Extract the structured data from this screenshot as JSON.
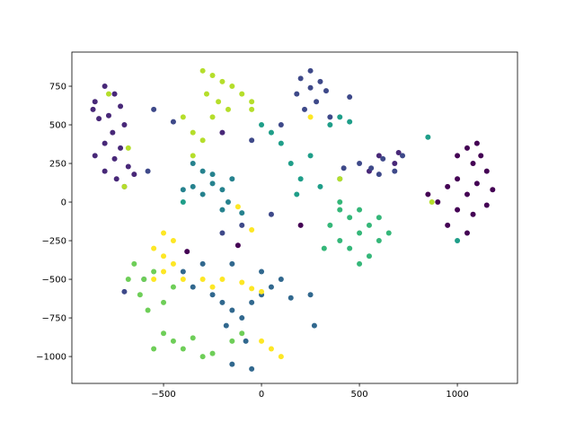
{
  "chart_data": {
    "type": "scatter",
    "xlim": [
      -968,
      1307
    ],
    "ylim": [
      -1174,
      971
    ],
    "xticks": [
      {
        "value": -500,
        "label": "−500"
      },
      0,
      500,
      1000
    ],
    "yticks": [
      {
        "value": -1000,
        "label": "−1000"
      },
      {
        "value": -750,
        "label": "−750"
      },
      {
        "value": -500,
        "label": "−500"
      },
      {
        "value": -250,
        "label": "−250"
      },
      0,
      250,
      500,
      750
    ],
    "grid": false,
    "series": [
      {
        "color": "#440154",
        "x": [
          1050,
          1100,
          1000,
          1120,
          1080,
          1150,
          1000,
          950,
          1100,
          1180,
          1050,
          900,
          1000,
          1080,
          950,
          1050,
          850,
          1150,
          -120,
          -380,
          200
        ],
        "y": [
          350,
          380,
          300,
          300,
          250,
          200,
          150,
          100,
          120,
          80,
          50,
          0,
          -50,
          -80,
          -150,
          -200,
          50,
          -20,
          -280,
          -320,
          -150
        ]
      },
      {
        "color": "#482878",
        "x": [
          -800,
          -750,
          -850,
          -720,
          -780,
          -830,
          -700,
          -760,
          -800,
          -720,
          -850,
          -750,
          -680,
          -800,
          -740,
          -700,
          -650,
          -860,
          600,
          680,
          550,
          700,
          -200
        ],
        "y": [
          750,
          700,
          650,
          620,
          560,
          540,
          500,
          450,
          380,
          350,
          300,
          280,
          230,
          200,
          150,
          100,
          180,
          600,
          300,
          250,
          200,
          320,
          450
        ]
      },
      {
        "color": "#3e4989",
        "x": [
          250,
          200,
          300,
          250,
          330,
          180,
          280,
          220,
          350,
          450,
          500,
          560,
          620,
          680,
          720,
          600,
          420,
          -450,
          -550,
          -200,
          -100,
          50,
          -50,
          100,
          -580,
          -700
        ],
        "y": [
          850,
          800,
          780,
          740,
          720,
          700,
          650,
          600,
          550,
          680,
          250,
          220,
          280,
          200,
          300,
          180,
          220,
          520,
          600,
          -200,
          -150,
          -80,
          400,
          500,
          200,
          -580
        ]
      },
      {
        "color": "#31688e",
        "x": [
          -200,
          -150,
          -100,
          -250,
          -50,
          0,
          -180,
          -80,
          -150,
          -50,
          50,
          100,
          -350,
          -400,
          -300,
          -150,
          0,
          150,
          250,
          270,
          -600
        ],
        "y": [
          -650,
          -700,
          -750,
          -600,
          -650,
          -600,
          -800,
          -900,
          -1050,
          -1080,
          -550,
          -500,
          -550,
          -450,
          -400,
          -400,
          -450,
          -620,
          -600,
          -800,
          -500
        ]
      },
      {
        "color": "#26828e",
        "x": [
          -400,
          -350,
          -300,
          -250,
          -200,
          -150,
          -300,
          -350,
          -250,
          -170,
          -200,
          -100
        ],
        "y": [
          80,
          100,
          50,
          120,
          80,
          150,
          200,
          250,
          180,
          0,
          -50,
          -70
        ]
      },
      {
        "color": "#1f9e89",
        "x": [
          0,
          50,
          100,
          150,
          200,
          250,
          350,
          400,
          450,
          300,
          180,
          1000,
          850,
          -400,
          400
        ],
        "y": [
          500,
          450,
          380,
          250,
          150,
          300,
          500,
          550,
          520,
          100,
          50,
          -250,
          420,
          0,
          150
        ]
      },
      {
        "color": "#35b779",
        "x": [
          400,
          450,
          500,
          550,
          600,
          450,
          500,
          400,
          350,
          600,
          650,
          550,
          400,
          320,
          500
        ],
        "y": [
          -50,
          -100,
          -200,
          -150,
          -250,
          -300,
          -400,
          -250,
          -150,
          -100,
          -200,
          -350,
          0,
          -300,
          -50
        ]
      },
      {
        "color": "#6ece58",
        "x": [
          -600,
          -620,
          -580,
          -500,
          -450,
          -550,
          -500,
          -450,
          -550,
          -400,
          -300,
          -350,
          -250,
          -150,
          -100,
          -680,
          -650
        ],
        "y": [
          -500,
          -600,
          -700,
          -650,
          -550,
          -450,
          -850,
          -900,
          -950,
          -950,
          -1000,
          -880,
          -980,
          -900,
          -850,
          -500,
          -400
        ]
      },
      {
        "color": "#b5de2b",
        "x": [
          -300,
          -250,
          -200,
          -150,
          -280,
          -220,
          -100,
          -50,
          -170,
          -250,
          -400,
          -350,
          -300,
          -350,
          -50,
          -780,
          -680,
          -700,
          400,
          870
        ],
        "y": [
          850,
          820,
          780,
          750,
          700,
          650,
          700,
          650,
          600,
          550,
          550,
          450,
          400,
          300,
          600,
          700,
          350,
          100,
          150,
          0
        ]
      },
      {
        "color": "#fde725",
        "x": [
          -500,
          -450,
          -550,
          -500,
          -450,
          -500,
          -550,
          -400,
          -300,
          -250,
          -200,
          -100,
          -50,
          0,
          0,
          50,
          100,
          -50,
          -120,
          250
        ],
        "y": [
          -200,
          -250,
          -300,
          -350,
          -400,
          -450,
          -500,
          -500,
          -500,
          -550,
          -500,
          -520,
          -560,
          -580,
          -900,
          -950,
          -1000,
          -180,
          -30,
          550
        ]
      }
    ]
  }
}
